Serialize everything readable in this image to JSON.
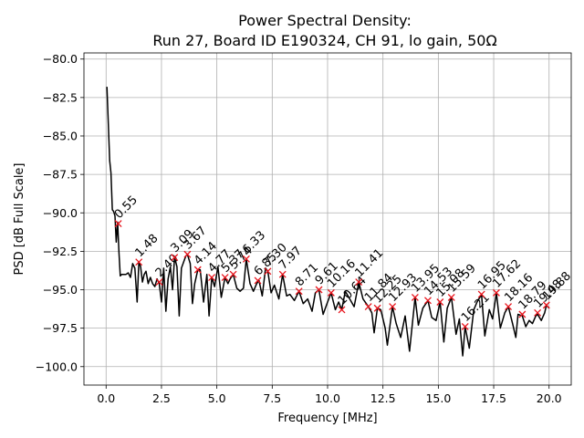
{
  "chart_data": {
    "type": "line",
    "title_line1": "Power Spectral Density:",
    "title_line2": "Run 27, Board ID E190324, CH 91, lo gain, 50Ω",
    "xlabel": "Frequency [MHz]",
    "ylabel": "PSD [dB Full Scale]",
    "xlim": [
      -1.0,
      21.0
    ],
    "ylim": [
      -101.2,
      -79.6
    ],
    "grid": true,
    "xticks": [
      0.0,
      2.5,
      5.0,
      7.5,
      10.0,
      12.5,
      15.0,
      17.5,
      20.0
    ],
    "xtick_labels": [
      "0.0",
      "2.5",
      "5.0",
      "7.5",
      "10.0",
      "12.5",
      "15.0",
      "17.5",
      "20.0"
    ],
    "yticks": [
      -80.0,
      -82.5,
      -85.0,
      -87.5,
      -90.0,
      -92.5,
      -95.0,
      -97.5,
      -100.0
    ],
    "ytick_labels": [
      "−80.0",
      "−82.5",
      "−85.0",
      "−87.5",
      "−90.0",
      "−92.5",
      "−95.0",
      "−97.5",
      "−100.0"
    ],
    "series": [
      {
        "name": "PSD",
        "color": "#000000",
        "x": [
          0.04,
          0.1,
          0.16,
          0.22,
          0.28,
          0.34,
          0.4,
          0.46,
          0.52,
          0.58,
          0.64,
          0.7,
          0.8,
          0.9,
          1.0,
          1.1,
          1.2,
          1.3,
          1.4,
          1.48,
          1.56,
          1.64,
          1.72,
          1.8,
          1.9,
          2.0,
          2.1,
          2.2,
          2.3,
          2.4,
          2.5,
          2.6,
          2.7,
          2.8,
          2.9,
          3.0,
          3.09,
          3.2,
          3.3,
          3.4,
          3.5,
          3.6,
          3.67,
          3.8,
          3.9,
          4.0,
          4.14,
          4.25,
          4.4,
          4.55,
          4.65,
          4.77,
          4.9,
          5.05,
          5.2,
          5.37,
          5.5,
          5.6,
          5.74,
          5.9,
          6.05,
          6.2,
          6.33,
          6.5,
          6.65,
          6.8,
          6.9,
          7.05,
          7.2,
          7.3,
          7.45,
          7.6,
          7.8,
          7.97,
          8.15,
          8.3,
          8.5,
          8.71,
          8.9,
          9.1,
          9.3,
          9.45,
          9.61,
          9.8,
          10.0,
          10.16,
          10.35,
          10.5,
          10.64,
          10.8,
          11.0,
          11.2,
          11.41,
          11.6,
          11.84,
          12.0,
          12.1,
          12.25,
          12.4,
          12.6,
          12.7,
          12.93,
          13.1,
          13.3,
          13.5,
          13.7,
          13.95,
          14.1,
          14.3,
          14.53,
          14.7,
          14.9,
          15.08,
          15.25,
          15.4,
          15.59,
          15.8,
          15.95,
          16.1,
          16.21,
          16.4,
          16.6,
          16.75,
          16.95,
          17.1,
          17.3,
          17.45,
          17.62,
          17.8,
          18.0,
          18.16,
          18.35,
          18.5,
          18.6,
          18.79,
          18.95,
          19.1,
          19.25,
          19.4,
          19.48,
          19.65,
          19.8,
          19.88,
          20.0
        ],
        "y": [
          -81.8,
          -84.2,
          -86.6,
          -87.4,
          -89.8,
          -89.9,
          -90.2,
          -91.9,
          -90.6,
          -92.6,
          -94.1,
          -94.0,
          -94.0,
          -94.0,
          -93.9,
          -94.2,
          -93.3,
          -93.6,
          -95.8,
          -93.2,
          -93.5,
          -94.5,
          -94.0,
          -93.8,
          -94.6,
          -94.2,
          -94.6,
          -94.8,
          -94.3,
          -94.6,
          -95.8,
          -93.6,
          -96.4,
          -94.3,
          -93.5,
          -95.0,
          -92.9,
          -93.5,
          -96.7,
          -93.6,
          -93.2,
          -92.8,
          -92.7,
          -93.3,
          -95.9,
          -94.6,
          -93.7,
          -93.7,
          -95.8,
          -94.0,
          -96.7,
          -94.2,
          -94.8,
          -93.5,
          -95.5,
          -94.2,
          -94.6,
          -94.3,
          -94.0,
          -94.9,
          -95.1,
          -94.9,
          -93.0,
          -94.6,
          -95.1,
          -94.6,
          -94.4,
          -95.4,
          -93.6,
          -93.8,
          -95.2,
          -94.7,
          -95.6,
          -94.0,
          -95.4,
          -95.3,
          -95.7,
          -95.1,
          -95.9,
          -95.6,
          -96.4,
          -95.2,
          -95.0,
          -96.6,
          -95.8,
          -95.2,
          -96.3,
          -95.8,
          -96.3,
          -95.1,
          -95.6,
          -96.1,
          -94.5,
          -95.6,
          -96.1,
          -96.5,
          -97.8,
          -96.2,
          -96.3,
          -97.5,
          -98.6,
          -96.1,
          -97.2,
          -98.1,
          -96.7,
          -99.0,
          -95.5,
          -97.3,
          -96.2,
          -95.7,
          -96.8,
          -97.0,
          -95.8,
          -98.4,
          -96.2,
          -95.5,
          -97.9,
          -96.9,
          -99.3,
          -97.4,
          -98.8,
          -96.3,
          -95.8,
          -95.3,
          -98.0,
          -96.3,
          -96.9,
          -95.2,
          -97.5,
          -96.5,
          -96.1,
          -97.2,
          -98.1,
          -96.6,
          -96.7,
          -97.4,
          -97.0,
          -97.2,
          -96.7,
          -96.6,
          -97.0,
          -96.5,
          -96.0,
          -96.2
        ]
      }
    ],
    "peaks": {
      "color": "#e8141c",
      "labels": [
        "0.55",
        "1.48",
        "2.40",
        "3.09",
        "3.67",
        "4.14",
        "4.77",
        "5.37",
        "5.74",
        "6.33",
        "6.85",
        "7.30",
        "7.97",
        "8.71",
        "9.61",
        "10.16",
        "10.64",
        "11.41",
        "11.84",
        "12.25",
        "12.93",
        "13.95",
        "14.53",
        "15.08",
        "15.59",
        "16.21",
        "16.95",
        "17.62",
        "18.16",
        "18.79",
        "19.48",
        "19.88"
      ],
      "x": [
        0.55,
        1.48,
        2.4,
        3.09,
        3.67,
        4.14,
        4.77,
        5.37,
        5.74,
        6.33,
        6.85,
        7.3,
        7.97,
        8.71,
        9.61,
        10.16,
        10.64,
        11.41,
        11.84,
        12.25,
        12.93,
        13.95,
        14.53,
        15.08,
        15.59,
        16.21,
        16.95,
        17.62,
        18.16,
        18.79,
        19.48,
        19.88
      ],
      "y": [
        -90.7,
        -93.2,
        -94.5,
        -92.9,
        -92.7,
        -93.7,
        -94.2,
        -94.2,
        -94.0,
        -93.0,
        -94.4,
        -93.8,
        -94.0,
        -95.1,
        -95.0,
        -95.2,
        -96.3,
        -94.5,
        -96.1,
        -96.2,
        -96.1,
        -95.5,
        -95.7,
        -95.8,
        -95.5,
        -97.4,
        -95.3,
        -95.2,
        -96.1,
        -96.6,
        -96.5,
        -96.0
      ]
    }
  }
}
